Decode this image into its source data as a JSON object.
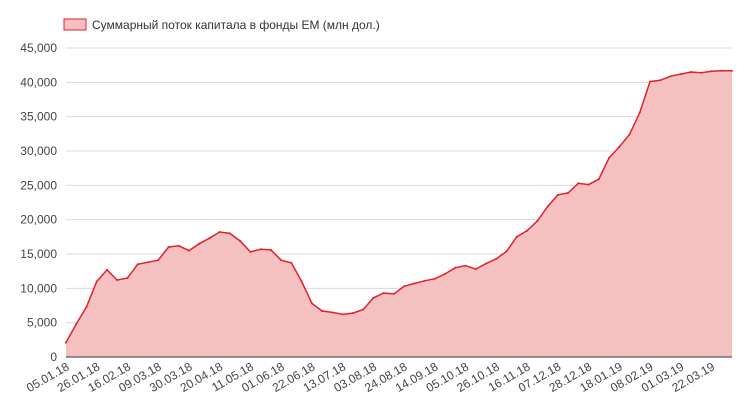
{
  "chart_data": {
    "type": "area",
    "legend": {
      "label": "Суммарный поток капитала в фонды ЕМ (млн дол.)",
      "position": "top-left"
    },
    "line_color": "#e0222b",
    "fill_color": "#f4c0c0",
    "grid": true,
    "ylim": [
      0,
      45000
    ],
    "y_ticks": [
      0,
      5000,
      10000,
      15000,
      20000,
      25000,
      30000,
      35000,
      40000,
      45000
    ],
    "y_tick_labels": [
      "0",
      "5,000",
      "10,000",
      "15,000",
      "20,000",
      "25,000",
      "30,000",
      "35,000",
      "40,000",
      "45,000"
    ],
    "x_tick_labels": [
      "05.01.18",
      "26.01.18",
      "16.02.18",
      "09.03.18",
      "30.03.18",
      "20.04.18",
      "11.05.18",
      "01.06.18",
      "22.06.18",
      "13.07.18",
      "03.08.18",
      "24.08.18",
      "14.09.18",
      "05.10.18",
      "26.10.18",
      "16.11.18",
      "07.12.18",
      "28.12.18",
      "18.01.19",
      "08.02.19",
      "01.03.19",
      "22.03.19"
    ],
    "x_tick_every": 3,
    "values": [
      2100,
      4800,
      7300,
      11000,
      12700,
      11200,
      11500,
      13500,
      13800,
      14100,
      16000,
      16200,
      15500,
      16500,
      17300,
      18200,
      18000,
      16900,
      15300,
      15700,
      15600,
      14100,
      13700,
      11000,
      7800,
      6700,
      6500,
      6200,
      6400,
      6900,
      8600,
      9300,
      9200,
      10300,
      10700,
      11100,
      11400,
      12100,
      13000,
      13300,
      12800,
      13600,
      14300,
      15400,
      17500,
      18400,
      19800,
      21900,
      23600,
      23900,
      25300,
      25100,
      25900,
      29000,
      30600,
      32400,
      35600,
      40100,
      40300,
      40900,
      41200,
      41500,
      41400,
      41600,
      41700,
      41700
    ]
  }
}
